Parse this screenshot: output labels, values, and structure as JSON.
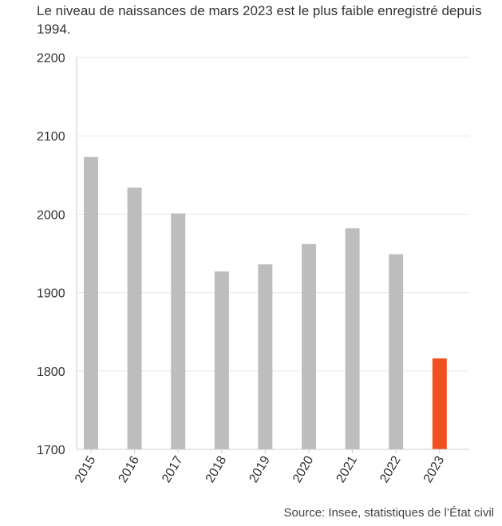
{
  "subtitle": "Le niveau de naissances de mars 2023 est le plus faible enregistré depuis 1994.",
  "source": "Source: Insee, statistiques de l’État civil",
  "colors": {
    "bar": "#bdbdbd",
    "highlight": "#f0501e",
    "grid": "#e6e6e6",
    "axis": "#cccccc"
  },
  "chart_data": {
    "type": "bar",
    "categories": [
      "2015",
      "2016",
      "2017",
      "2018",
      "2019",
      "2020",
      "2021",
      "2022",
      "2023"
    ],
    "values": [
      2073,
      2034,
      2001,
      1927,
      1936,
      1962,
      1982,
      1949,
      1816
    ],
    "highlight_index": 8,
    "ylim": [
      1700,
      2200
    ],
    "yticks": [
      "1700",
      "1800",
      "1900",
      "2000",
      "2100",
      "2200"
    ],
    "grid": true
  }
}
